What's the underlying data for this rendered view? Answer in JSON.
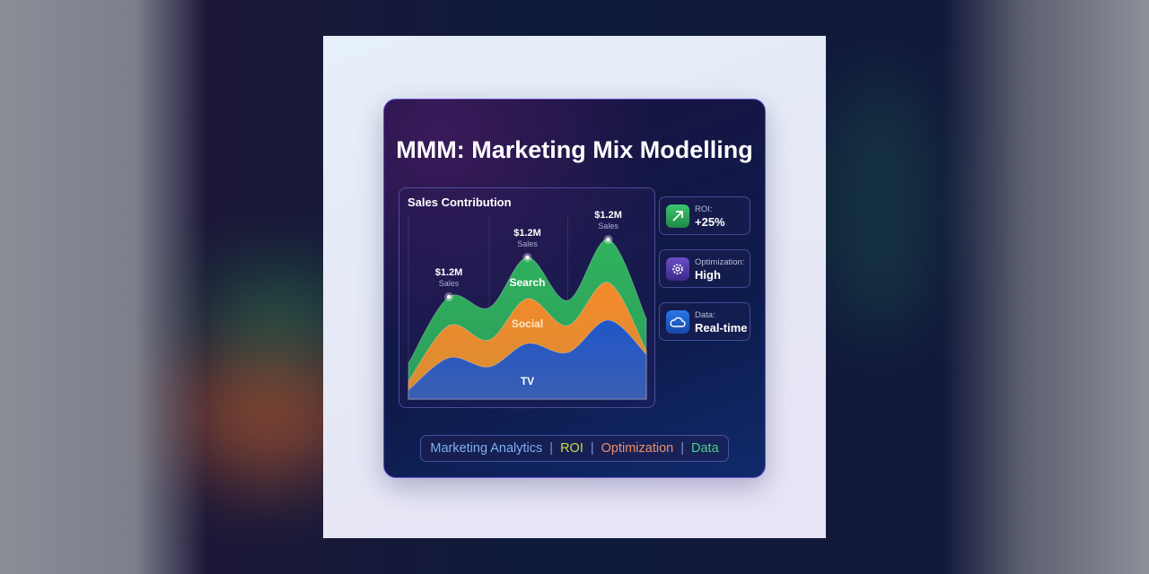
{
  "title": "MMM: Marketing Mix Modelling",
  "chart_data": {
    "type": "area",
    "stacked": true,
    "title": "Sales Contribution",
    "x": [
      0,
      1.7,
      3.4,
      5,
      6.7,
      8.4,
      10
    ],
    "ylim": [
      0,
      100
    ],
    "grid": false,
    "series": [
      {
        "name": "TV",
        "color": "#1f56c9",
        "top": [
          5,
          23,
          18,
          31,
          26,
          44,
          25
        ]
      },
      {
        "name": "Social",
        "color": "#f5892b",
        "top": [
          10,
          41,
          33,
          56,
          41,
          65,
          27
        ]
      },
      {
        "name": "Search",
        "color": "#2fb35d",
        "top": [
          20,
          57,
          51,
          79,
          55,
          89,
          45
        ]
      }
    ],
    "annotations": [
      {
        "x": 1.7,
        "value": "$1.2M",
        "label": "Sales"
      },
      {
        "x": 5,
        "value": "$1.2M",
        "label": "Sales"
      },
      {
        "x": 8.4,
        "value": "$1.2M",
        "label": "Sales"
      }
    ]
  },
  "stats": [
    {
      "icon": "trend-up-arrow-icon",
      "label": "ROI:",
      "value": "+25%",
      "color": "#2aa95a"
    },
    {
      "icon": "gear-icon",
      "label": "Optimization:",
      "value": "High",
      "color": "#5b3fb0"
    },
    {
      "icon": "cloud-icon",
      "label": "Data:",
      "value": "Real-time",
      "color": "#1e63d6"
    }
  ],
  "tags": [
    {
      "text": "Marketing Analytics",
      "color": "#7fb0f0"
    },
    {
      "text": "ROI",
      "color": "#c9d84a"
    },
    {
      "text": "Optimization",
      "color": "#f0906a"
    },
    {
      "text": "Data",
      "color": "#4fcf8a"
    }
  ]
}
